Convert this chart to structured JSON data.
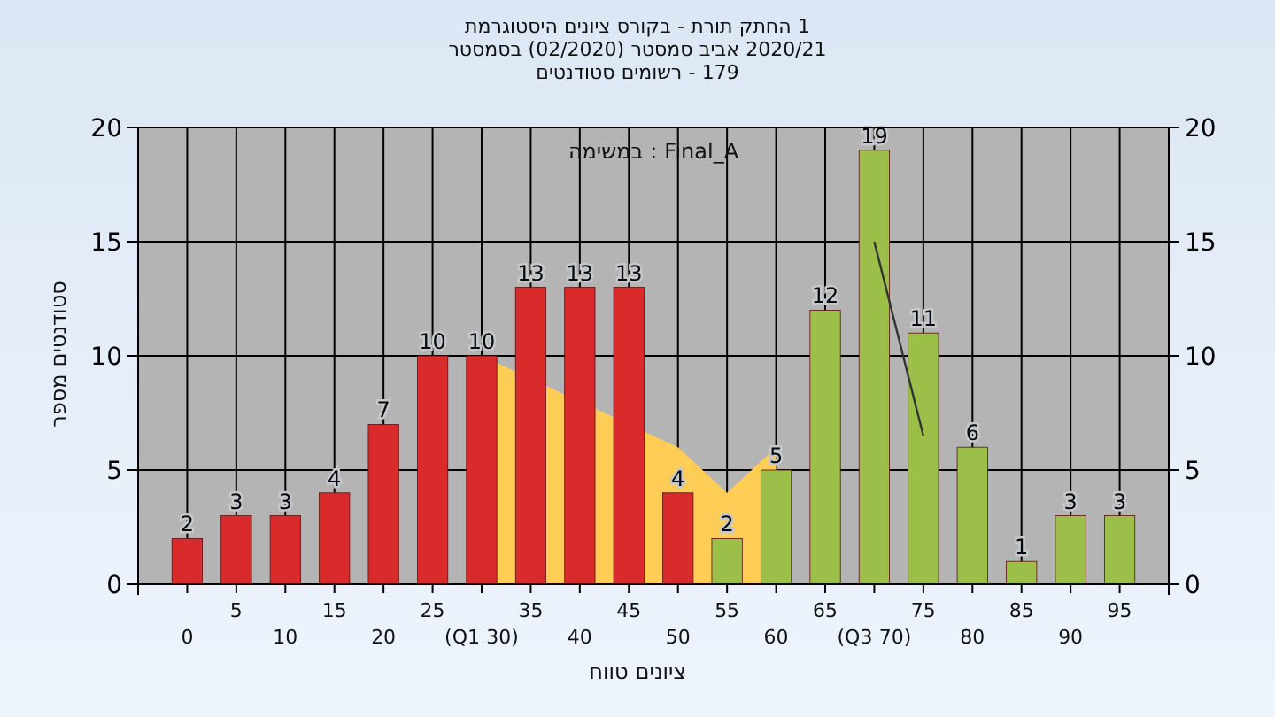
{
  "chart_data": {
    "type": "bar",
    "title": "היסטוגרמת ציונים בקורס - תורת החתק 1",
    "subtitle": "בסמסטר (02/2020) סמסטר אביב 2020/21\nסטודנטים רשומים - 179",
    "xlabel": "טווח ציונים",
    "ylabel": "מספר סטודנטים",
    "annotations": [
      "במשימה : Final_A"
    ],
    "categories": [
      "0",
      "5",
      "10",
      "15",
      "20",
      "25",
      "(Q1 30)",
      "35",
      "40",
      "45",
      "50",
      "55",
      "60",
      "65",
      "(Q3 70)",
      "75",
      "80",
      "85",
      "90",
      "95"
    ],
    "series": [
      {
        "type": "area",
        "color": "#ffcc55",
        "values": [
          null,
          null,
          null,
          null,
          null,
          null,
          10,
          null,
          null,
          null,
          6,
          4,
          6,
          null,
          null,
          null,
          null,
          null,
          null,
          null
        ]
      },
      {
        "colors": [
          "#d92b2b",
          "#d92b2b",
          "#d92b2b",
          "#d92b2b",
          "#d92b2b",
          "#d92b2b",
          "#d92b2b",
          "#d92b2b",
          "#d92b2b",
          "#d92b2b",
          "#d92b2b",
          "#9cbf4a",
          "#9cbf4a",
          "#9cbf4a",
          "#9cbf4a",
          "#9cbf4a",
          "#9cbf4a",
          "#9cbf4a",
          "#9cbf4a",
          "#9cbf4a"
        ],
        "values": [
          2,
          3,
          3,
          4,
          7,
          10,
          10,
          13,
          13,
          13,
          4,
          2,
          5,
          12,
          19,
          11,
          6,
          1,
          3,
          3
        ],
        "data_labels": true
      },
      {
        "type": "line",
        "color": "#333333",
        "values": [
          null,
          null,
          null,
          null,
          null,
          null,
          null,
          null,
          null,
          null,
          null,
          null,
          null,
          null,
          15,
          6.5,
          null,
          null,
          null,
          null
        ]
      }
    ],
    "ylim": [
      0,
      20
    ],
    "yticks": [
      0,
      5,
      10,
      15,
      20
    ],
    "y2lim": [
      0,
      20
    ],
    "y2ticks": [
      0,
      5,
      10,
      15,
      20
    ],
    "grid": true
  }
}
